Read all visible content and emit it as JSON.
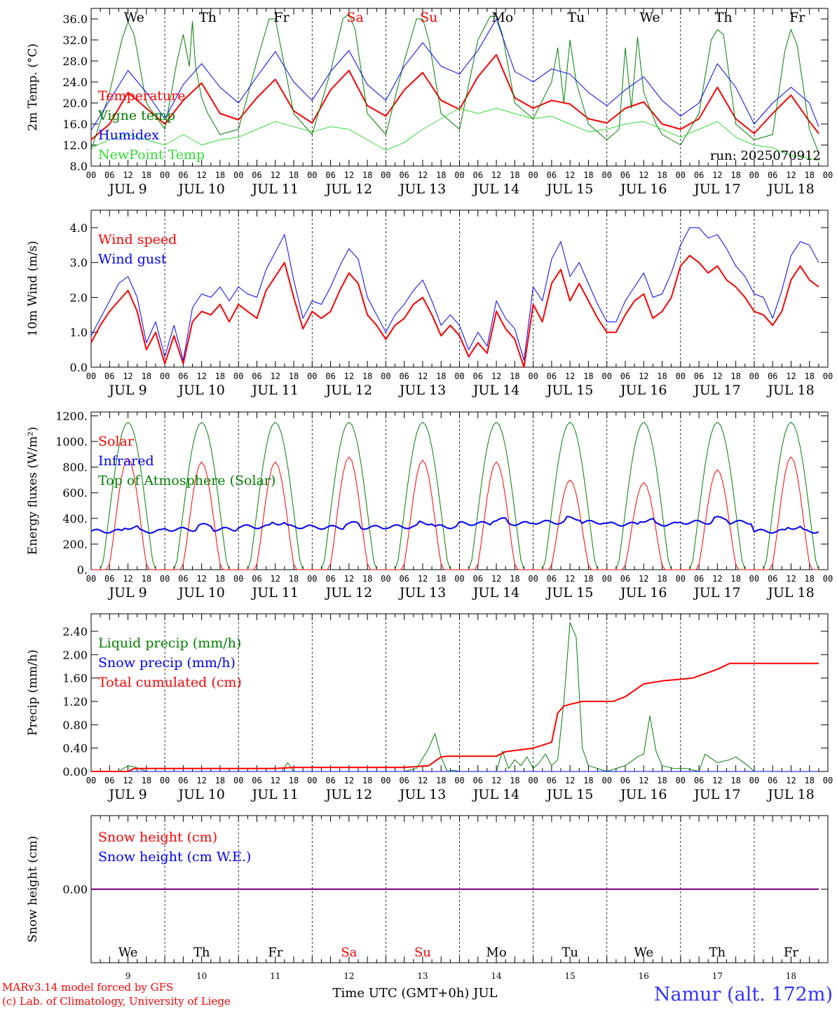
{
  "page": {
    "footer_left_line1": "MARv3.14 model forced by GFS",
    "footer_left_line2": "(c) Lab. of Climatology, University of Liege",
    "footer_xlabel": "Time UTC (GMT+0h) JUL",
    "location": "Namur (alt. 172m)"
  },
  "colors": {
    "red": "#ff0000",
    "blue": "#0000ff",
    "green": "#008000",
    "lightgreen": "#33dd33",
    "axis": "#000000"
  },
  "time_axis": {
    "hour_ticks": [
      "00",
      "06",
      "12",
      "18"
    ],
    "date_labels": [
      "JUL  9",
      "JUL 10",
      "JUL 11",
      "JUL 12",
      "JUL 13",
      "JUL 14",
      "JUL 15",
      "JUL 16",
      "JUL 17",
      "JUL 18"
    ],
    "weekdays": [
      "We",
      "Th",
      "Fr",
      "Sa",
      "Su",
      "Mo",
      "Tu",
      "We",
      "Th",
      "Fr"
    ],
    "weekday_colors": [
      "#000000",
      "#000000",
      "#000000",
      "#ff0000",
      "#ff0000",
      "#000000",
      "#000000",
      "#000000",
      "#000000",
      "#000000"
    ],
    "day_numbers": [
      "9",
      "10",
      "11",
      "12",
      "13",
      "14",
      "15",
      "16",
      "17",
      "18"
    ]
  },
  "chart_data": [
    {
      "type": "line",
      "ylabel": "2m Temp. (°C)",
      "ylim": [
        8,
        38
      ],
      "yticks": [
        "8.0",
        "12.0",
        "16.0",
        "20.0",
        "24.0",
        "28.0",
        "32.0",
        "36.0"
      ],
      "ytick_values": [
        8,
        12,
        16,
        20,
        24,
        28,
        32,
        36
      ],
      "run_label": "run: 2025070912",
      "series": [
        {
          "name": "Temperature",
          "color": "#ff0000",
          "width": 2,
          "x": [
            0,
            6,
            12,
            18,
            24,
            30,
            36,
            42,
            48,
            54,
            60,
            66,
            72,
            78,
            84,
            90,
            96,
            102,
            108,
            114,
            120,
            126,
            132,
            138,
            144,
            150,
            156,
            162,
            168,
            174,
            180,
            186,
            192,
            198,
            204,
            210,
            216,
            222,
            228,
            234,
            237
          ],
          "y": [
            13,
            16,
            22,
            19,
            16,
            20.5,
            23.8,
            18,
            16.8,
            21,
            24.5,
            18.5,
            16.2,
            22.5,
            26.2,
            19.5,
            17.5,
            22.5,
            25.8,
            20.5,
            18.8,
            25,
            29.2,
            21,
            19,
            20.5,
            19.8,
            17,
            16.2,
            19,
            20.2,
            16,
            15,
            17,
            23,
            17,
            14.2,
            18,
            21.5,
            16.5,
            14.2
          ]
        },
        {
          "name": "Vigne temp",
          "color": "#008000",
          "width": 1,
          "x": [
            0,
            6,
            10,
            12,
            14,
            18,
            24,
            28,
            30,
            32,
            33,
            34,
            36,
            38,
            42,
            48,
            54,
            58,
            60,
            62,
            66,
            72,
            78,
            82,
            84,
            86,
            90,
            96,
            102,
            106,
            108,
            110,
            114,
            120,
            126,
            130,
            132,
            134,
            138,
            144,
            150,
            152,
            154,
            156,
            158,
            162,
            168,
            172,
            174,
            176,
            178,
            180,
            184,
            186,
            192,
            198,
            202,
            204,
            206,
            210,
            216,
            222,
            226,
            228,
            230,
            234,
            237
          ],
          "y": [
            11,
            22,
            32,
            35.5,
            33,
            20,
            15,
            28,
            33,
            27,
            35.5,
            27,
            21,
            18,
            14,
            15,
            28,
            36,
            36,
            30,
            18,
            14,
            26,
            36,
            37,
            34,
            18,
            14,
            28,
            36,
            36,
            32,
            18,
            15,
            32,
            36.5,
            36.5,
            33,
            20,
            17,
            24,
            30.5,
            20,
            32,
            24,
            16,
            13,
            15,
            30.5,
            19,
            32.5,
            22,
            16,
            14,
            12,
            18,
            32,
            34,
            33,
            16,
            13,
            14,
            30,
            34,
            31,
            15,
            10.5
          ]
        },
        {
          "name": "Humidex",
          "color": "#0000ff",
          "width": 1,
          "x": [
            0,
            6,
            12,
            18,
            24,
            30,
            36,
            42,
            48,
            54,
            60,
            66,
            72,
            78,
            84,
            90,
            96,
            102,
            108,
            114,
            120,
            126,
            132,
            138,
            144,
            150,
            156,
            162,
            168,
            174,
            180,
            186,
            192,
            198,
            204,
            210,
            216,
            222,
            228,
            234,
            237
          ],
          "y": [
            14.8,
            20.5,
            26.2,
            22,
            17,
            23.5,
            27.5,
            23,
            20,
            25,
            29.8,
            24,
            20.5,
            26,
            30,
            23.5,
            20.5,
            27,
            31.5,
            27,
            25.5,
            30,
            36,
            26,
            24,
            26.5,
            25.5,
            22,
            19.5,
            22.5,
            25,
            20.5,
            17.5,
            20,
            27.5,
            23,
            16,
            20,
            23,
            20,
            15.5
          ]
        },
        {
          "name": "NewPoint Temp",
          "color": "#33dd33",
          "width": 1,
          "x": [
            0,
            6,
            12,
            18,
            24,
            30,
            36,
            42,
            48,
            54,
            60,
            66,
            72,
            78,
            84,
            90,
            96,
            102,
            108,
            114,
            120,
            126,
            132,
            138,
            144,
            150,
            156,
            162,
            168,
            174,
            180,
            186,
            192,
            198,
            204,
            210,
            216,
            222,
            228,
            234,
            237
          ],
          "y": [
            11.5,
            13,
            14,
            13,
            12,
            14,
            12,
            13,
            13.5,
            15,
            16.5,
            15.5,
            14.5,
            15.5,
            15,
            13,
            11,
            12.5,
            15,
            17,
            19,
            18,
            19,
            18,
            17,
            17.5,
            16,
            14.5,
            15,
            16,
            16.5,
            15,
            13.5,
            15,
            16.5,
            13.5,
            12,
            11.5,
            10,
            9.5,
            9
          ]
        }
      ]
    },
    {
      "type": "line",
      "ylabel": "10m Wind (m/s)",
      "ylim": [
        0,
        4.5
      ],
      "yticks": [
        "0.0",
        "1.0",
        "2.0",
        "3.0",
        "4.0"
      ],
      "ytick_values": [
        0,
        1,
        2,
        3,
        4
      ],
      "series": [
        {
          "name": "Wind speed",
          "color": "#ff0000",
          "width": 2,
          "x": [
            0,
            3,
            6,
            9,
            12,
            15,
            18,
            21,
            24,
            27,
            30,
            33,
            36,
            39,
            42,
            45,
            48,
            51,
            54,
            57,
            60,
            63,
            66,
            69,
            72,
            75,
            78,
            81,
            84,
            87,
            90,
            93,
            96,
            99,
            102,
            105,
            108,
            111,
            114,
            117,
            120,
            123,
            126,
            129,
            132,
            135,
            138,
            141,
            144,
            147,
            150,
            153,
            156,
            159,
            162,
            165,
            168,
            171,
            174,
            177,
            180,
            183,
            186,
            189,
            192,
            195,
            198,
            201,
            204,
            207,
            210,
            213,
            216,
            219,
            222,
            225,
            228,
            231,
            234,
            237
          ],
          "y": [
            0.7,
            1.2,
            1.6,
            1.9,
            2.2,
            1.6,
            0.5,
            1.0,
            0.1,
            0.9,
            0.1,
            1.3,
            1.6,
            1.5,
            1.8,
            1.3,
            1.8,
            1.6,
            1.4,
            2.2,
            2.6,
            3.0,
            2.0,
            1.1,
            1.6,
            1.4,
            1.6,
            2.2,
            2.7,
            2.4,
            1.5,
            1.2,
            0.8,
            1.2,
            1.4,
            1.8,
            2.0,
            1.5,
            0.9,
            1.2,
            0.9,
            0.3,
            0.7,
            0.4,
            1.6,
            1.1,
            0.8,
            0.0,
            1.8,
            1.3,
            2.4,
            2.8,
            1.9,
            2.4,
            1.9,
            1.4,
            1.0,
            1.0,
            1.5,
            1.9,
            2.1,
            1.4,
            1.6,
            2.0,
            2.9,
            3.2,
            3.0,
            2.7,
            2.9,
            2.5,
            2.3,
            2.0,
            1.6,
            1.5,
            1.2,
            1.6,
            2.5,
            2.9,
            2.5,
            2.3
          ]
        },
        {
          "name": "Wind gust",
          "color": "#0000ff",
          "width": 1,
          "x": [
            0,
            3,
            6,
            9,
            12,
            15,
            18,
            21,
            24,
            27,
            30,
            33,
            36,
            39,
            42,
            45,
            48,
            51,
            54,
            57,
            60,
            63,
            66,
            69,
            72,
            75,
            78,
            81,
            84,
            87,
            90,
            93,
            96,
            99,
            102,
            105,
            108,
            111,
            114,
            117,
            120,
            123,
            126,
            129,
            132,
            135,
            138,
            141,
            144,
            147,
            150,
            153,
            156,
            159,
            162,
            165,
            168,
            171,
            174,
            177,
            180,
            183,
            186,
            189,
            192,
            195,
            198,
            201,
            204,
            207,
            210,
            213,
            216,
            219,
            222,
            225,
            228,
            231,
            234,
            237
          ],
          "y": [
            0.9,
            1.4,
            1.9,
            2.4,
            2.6,
            2.0,
            0.7,
            1.3,
            0.3,
            1.2,
            0.2,
            1.7,
            2.1,
            2.0,
            2.3,
            1.9,
            2.3,
            2.1,
            2.0,
            2.8,
            3.3,
            3.8,
            2.5,
            1.4,
            1.9,
            1.8,
            2.3,
            2.9,
            3.4,
            3.1,
            2.0,
            1.5,
            1.0,
            1.5,
            1.8,
            2.2,
            2.5,
            1.9,
            1.2,
            1.5,
            1.2,
            0.5,
            1.0,
            0.6,
            1.9,
            1.4,
            1.1,
            0.2,
            2.3,
            1.9,
            3.1,
            3.6,
            2.6,
            3.0,
            2.4,
            1.8,
            1.3,
            1.3,
            1.9,
            2.3,
            2.7,
            2.0,
            2.1,
            2.7,
            3.5,
            4.0,
            4.0,
            3.7,
            3.8,
            3.4,
            2.9,
            2.6,
            2.1,
            2.0,
            1.4,
            2.2,
            3.2,
            3.6,
            3.5,
            3.0
          ]
        }
      ]
    },
    {
      "type": "line",
      "ylabel": "Energy fluxes (W/m²)",
      "ylim": [
        0,
        1230
      ],
      "yticks": [
        "0.",
        "200.",
        "400.",
        "600.",
        "800.",
        "1000.",
        "1200."
      ],
      "ytick_values": [
        0,
        200,
        400,
        600,
        800,
        1000,
        1200
      ],
      "solar_peaks": [
        870,
        840,
        840,
        880,
        855,
        840,
        700,
        680,
        780,
        880
      ],
      "toa_peak": 1150,
      "infrared_base": [
        300,
        315,
        335,
        330,
        335,
        360,
        370,
        355,
        370,
        300
      ],
      "series": [
        {
          "name": "Solar",
          "color": "#ff0000",
          "width": 1
        },
        {
          "name": "Infrared",
          "color": "#0000ff",
          "width": 2
        },
        {
          "name": "Top of Atmosphere (Solar)",
          "color": "#008000",
          "width": 1
        }
      ]
    },
    {
      "type": "line",
      "ylabel": "Precip (mm/h)",
      "ylim": [
        0,
        2.7
      ],
      "yticks": [
        "0.00",
        "0.40",
        "0.80",
        "1.20",
        "1.60",
        "2.00",
        "2.40"
      ],
      "ytick_values": [
        0,
        0.4,
        0.8,
        1.2,
        1.6,
        2.0,
        2.4
      ],
      "series": [
        {
          "name": "Liquid precip (mm/h)",
          "color": "#008000",
          "width": 1,
          "x": [
            0,
            9,
            12,
            14,
            18,
            60,
            62,
            64,
            66,
            102,
            106,
            110,
            112,
            114,
            116,
            118,
            120,
            126,
            132,
            134,
            136,
            138,
            140,
            142,
            144,
            146,
            148,
            150,
            152,
            154,
            156,
            158,
            160,
            162,
            168,
            174,
            178,
            180,
            182,
            184,
            186,
            190,
            194,
            198,
            200,
            204,
            208,
            210,
            214,
            216,
            237
          ],
          "y": [
            0,
            0,
            0.1,
            0.08,
            0,
            0,
            0,
            0.15,
            0,
            0,
            0.05,
            0.4,
            0.65,
            0.25,
            0,
            0.02,
            0,
            0,
            0,
            0.35,
            0.05,
            0.2,
            0.1,
            0.25,
            0.05,
            0.15,
            0.3,
            0.1,
            0.2,
            1.2,
            2.55,
            2.3,
            0.4,
            0.1,
            0,
            0.1,
            0.25,
            0.3,
            0.95,
            0.35,
            0.1,
            0.05,
            0.05,
            0,
            0.3,
            0.15,
            0.2,
            0.25,
            0.1,
            0,
            0
          ]
        },
        {
          "name": "Snow precip (mm/h)",
          "color": "#0000ff",
          "width": 1,
          "x": [
            0,
            237
          ],
          "y": [
            0,
            0
          ]
        },
        {
          "name": "Total cumulated (cm)",
          "color": "#ff0000",
          "width": 2,
          "x": [
            0,
            12,
            14,
            60,
            66,
            102,
            110,
            114,
            116,
            132,
            135,
            144,
            150,
            152,
            154,
            156,
            160,
            170,
            174,
            180,
            186,
            196,
            204,
            208,
            237
          ],
          "y": [
            0,
            0,
            0.05,
            0.05,
            0.07,
            0.07,
            0.1,
            0.25,
            0.26,
            0.26,
            0.34,
            0.4,
            0.5,
            1.0,
            1.12,
            1.15,
            1.2,
            1.2,
            1.28,
            1.5,
            1.55,
            1.6,
            1.75,
            1.85,
            1.85
          ]
        }
      ]
    },
    {
      "type": "line",
      "ylabel": "Snow height (cm)",
      "ylim": [
        -1,
        1
      ],
      "yticks": [
        "0.00"
      ],
      "ytick_values": [
        0
      ],
      "series": [
        {
          "name": "Snow height (cm)",
          "color": "#ff0000",
          "width": 2,
          "x": [
            0,
            237
          ],
          "y": [
            0,
            0
          ]
        },
        {
          "name": "Snow height (cm W.E.)",
          "color": "#0000ff",
          "width": 1,
          "x": [
            0,
            237
          ],
          "y": [
            0,
            0
          ]
        }
      ]
    }
  ]
}
